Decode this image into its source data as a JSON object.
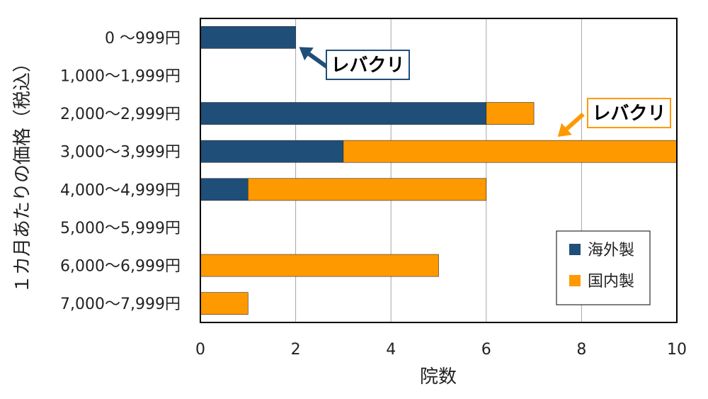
{
  "chart_data": {
    "type": "bar",
    "orientation": "horizontal",
    "stacked": true,
    "categories": [
      "0 ～999円",
      "1,000～1,999円",
      "2,000～2,999円",
      "3,000～3,999円",
      "4,000～4,999円",
      "5,000～5,999円",
      "6,000～6,999円",
      "7,000～7,999円"
    ],
    "series": [
      {
        "name": "海外製",
        "color": "#1f4e79",
        "values": [
          2,
          0,
          6,
          3,
          1,
          0,
          0,
          0
        ]
      },
      {
        "name": "国内製",
        "color": "#ff9900",
        "values": [
          0,
          0,
          1,
          7,
          5,
          0,
          5,
          1
        ]
      }
    ],
    "xlabel": "院数",
    "ylabel": "１カ月あたりの価格（税込）",
    "xlim": [
      0,
      10
    ],
    "xticks": [
      0,
      2,
      4,
      6,
      8,
      10
    ],
    "grid": "vertical",
    "legend": "lower-right",
    "annotations": [
      {
        "text": "レバクリ",
        "category_index": 0,
        "series": "海外製",
        "color": "#1f4e79"
      },
      {
        "text": "レバクリ",
        "category_index": 3,
        "series": "国内製",
        "color": "#ff9900"
      }
    ]
  }
}
